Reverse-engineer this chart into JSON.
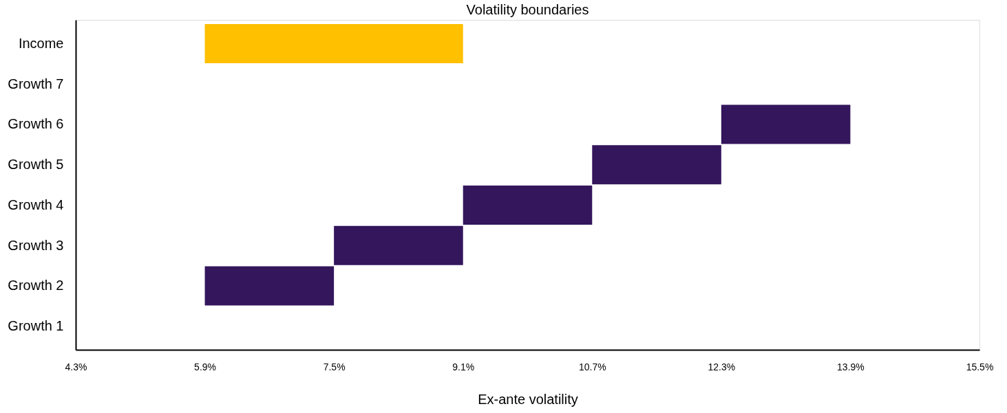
{
  "chart_data": {
    "type": "bar",
    "orientation": "horizontal",
    "title": "Volatility boundaries",
    "xlabel": "Ex-ante volatility",
    "categories": [
      "Income",
      "Growth 7",
      "Growth 6",
      "Growth 5",
      "Growth 4",
      "Growth 3",
      "Growth 2",
      "Growth 1"
    ],
    "base": [
      5.9,
      null,
      12.3,
      10.7,
      9.1,
      7.5,
      5.9,
      null
    ],
    "values": [
      3.2,
      null,
      1.6,
      1.6,
      1.6,
      1.6,
      1.6,
      null
    ],
    "colors": [
      "#ffc000",
      null,
      "#33165c",
      "#33165c",
      "#33165c",
      "#33165c",
      "#33165c",
      null
    ],
    "xlim": [
      4.3,
      15.5
    ],
    "xticks": [
      {
        "value": 4.3,
        "label": "4.3%"
      },
      {
        "value": 5.9,
        "label": "5.9%"
      },
      {
        "value": 7.5,
        "label": "7.5%"
      },
      {
        "value": 9.1,
        "label": "9.1%"
      },
      {
        "value": 10.7,
        "label": "10.7%"
      },
      {
        "value": 12.3,
        "label": "12.3%"
      },
      {
        "value": 13.9,
        "label": "13.9%"
      },
      {
        "value": 15.5,
        "label": "15.5%"
      }
    ],
    "grid": false
  }
}
